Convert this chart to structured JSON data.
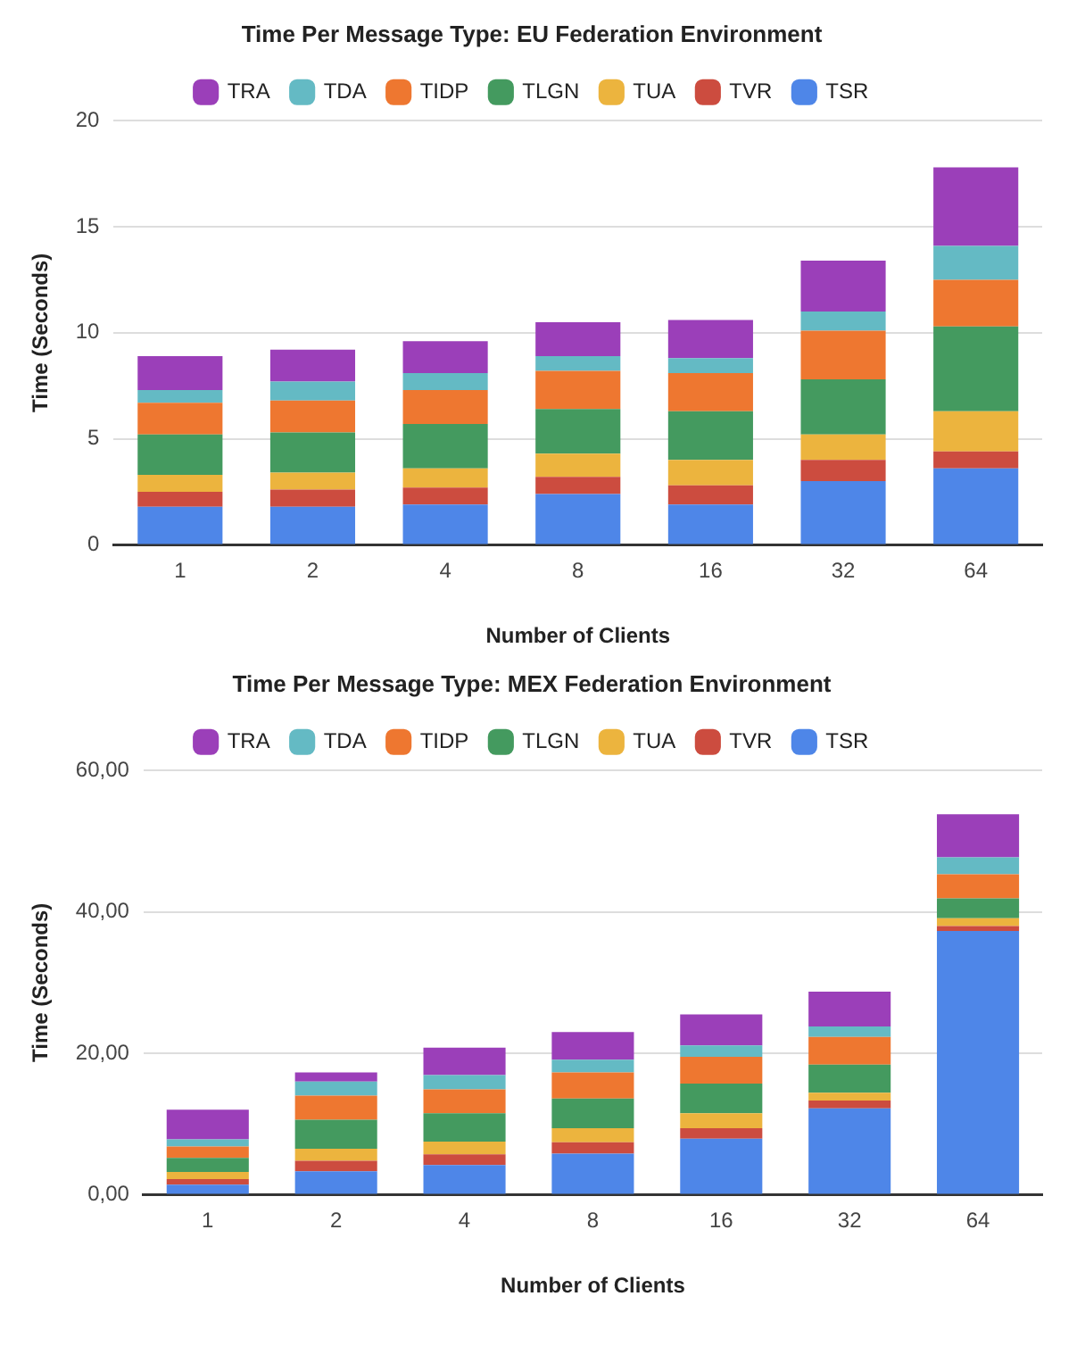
{
  "chart_data": [
    {
      "type": "bar",
      "title": "Time Per Message Type: EU Federation Environment",
      "xlabel": "Number of Clients",
      "ylabel": "Time (Seconds)",
      "categories": [
        "1",
        "2",
        "4",
        "8",
        "16",
        "32",
        "64"
      ],
      "stacked": true,
      "legend": "top",
      "grid": "y",
      "ylim": [
        0,
        20
      ],
      "yticks": [
        0,
        5,
        10,
        15,
        20
      ],
      "series": [
        {
          "name": "TSR",
          "color": "#4e86e8",
          "values": [
            1.8,
            1.8,
            1.9,
            2.4,
            1.9,
            3.0,
            3.6
          ]
        },
        {
          "name": "TVR",
          "color": "#cc4c3f",
          "values": [
            0.7,
            0.8,
            0.8,
            0.8,
            0.9,
            1.0,
            0.8
          ]
        },
        {
          "name": "TUA",
          "color": "#ecb43e",
          "values": [
            0.8,
            0.8,
            0.9,
            1.1,
            1.2,
            1.2,
            1.9
          ]
        },
        {
          "name": "TLGN",
          "color": "#449a5f",
          "values": [
            1.9,
            1.9,
            2.1,
            2.1,
            2.3,
            2.6,
            4.0
          ]
        },
        {
          "name": "TIDP",
          "color": "#ee7730",
          "values": [
            1.5,
            1.5,
            1.6,
            1.8,
            1.8,
            2.3,
            2.2
          ]
        },
        {
          "name": "TDA",
          "color": "#64bac4",
          "values": [
            0.6,
            0.9,
            0.8,
            0.7,
            0.7,
            0.9,
            1.6
          ]
        },
        {
          "name": "TRA",
          "color": "#9b3fb9",
          "values": [
            1.6,
            1.5,
            1.5,
            1.6,
            1.8,
            2.4,
            3.7
          ]
        }
      ]
    },
    {
      "type": "bar",
      "title": "Time Per Message Type: MEX Federation Environment",
      "xlabel": "Number of Clients",
      "ylabel": "Time (Seconds)",
      "categories": [
        "1",
        "2",
        "4",
        "8",
        "16",
        "32",
        "64"
      ],
      "stacked": true,
      "legend": "top",
      "grid": "y",
      "ylim": [
        0,
        60
      ],
      "yticks": [
        {
          "value": 0,
          "label": "0,00"
        },
        {
          "value": 20,
          "label": "20,00"
        },
        {
          "value": 40,
          "label": "40,00"
        },
        {
          "value": 60,
          "label": "60,00"
        }
      ],
      "series": [
        {
          "name": "TSR",
          "color": "#4e86e8",
          "values": [
            1.4,
            3.3,
            4.2,
            5.8,
            7.9,
            12.2,
            37.3
          ]
        },
        {
          "name": "TVR",
          "color": "#cc4c3f",
          "values": [
            0.8,
            1.5,
            1.5,
            1.6,
            1.5,
            1.1,
            0.7
          ]
        },
        {
          "name": "TUA",
          "color": "#ecb43e",
          "values": [
            1.0,
            1.7,
            1.8,
            2.0,
            2.1,
            1.1,
            1.1
          ]
        },
        {
          "name": "TLGN",
          "color": "#449a5f",
          "values": [
            2.0,
            4.1,
            4.0,
            4.2,
            4.2,
            4.0,
            2.8
          ]
        },
        {
          "name": "TIDP",
          "color": "#ee7730",
          "values": [
            1.6,
            3.4,
            3.4,
            3.7,
            3.8,
            3.9,
            3.4
          ]
        },
        {
          "name": "TDA",
          "color": "#64bac4",
          "values": [
            1.0,
            2.0,
            2.0,
            1.8,
            1.6,
            1.5,
            2.4
          ]
        },
        {
          "name": "TRA",
          "color": "#9b3fb9",
          "values": [
            4.2,
            1.3,
            3.9,
            3.9,
            4.4,
            4.9,
            6.1
          ]
        }
      ]
    }
  ]
}
